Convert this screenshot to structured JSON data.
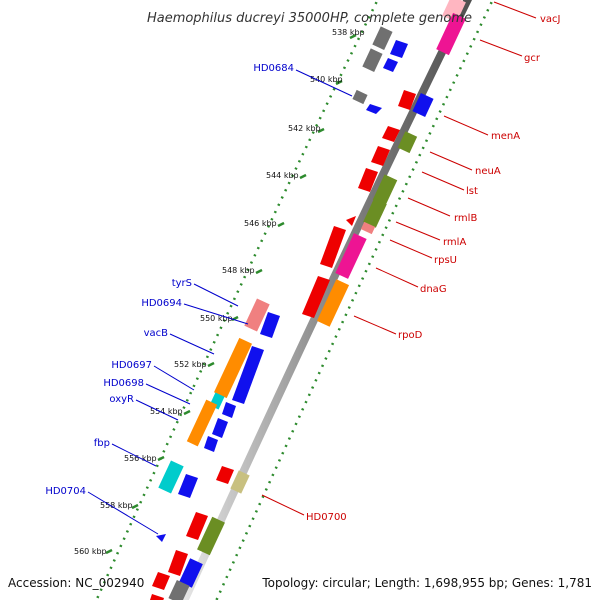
{
  "title": "Haemophilus ducreyi 35000HP, complete genome",
  "footer": {
    "accession": "Accession: NC_002940",
    "stats": "Topology: circular; Length: 1,698,955 bp; Genes: 1,781"
  },
  "colors": {
    "backbone": "#808080",
    "ruler": "#2e8b2e",
    "forward_label": "#cc0000",
    "reverse_label": "#0000cc",
    "red": "#ee0000",
    "blue": "#1010ee",
    "orange": "#ff8c00",
    "olive": "#6b8e23",
    "magenta": "#ee1493",
    "pink": "#f08080",
    "cyan": "#00cccc",
    "tan": "#c8c080",
    "gray": "#707070"
  },
  "ruler_ticks": [
    "538 kbp",
    "540 kbp",
    "542 kbp",
    "544 kbp",
    "546 kbp",
    "548 kbp",
    "550 kbp",
    "552 kbp",
    "554 kbp",
    "556 kbp",
    "558 kbp",
    "560 kbp"
  ],
  "forward_labels": [
    "vacJ",
    "gcr",
    "menA",
    "neuA",
    "lst",
    "rmlB",
    "rmlA",
    "rpsU",
    "dnaG",
    "rpoD",
    "HD0700"
  ],
  "reverse_labels": [
    "HD0684",
    "tyrS",
    "HD0694",
    "vacB",
    "HD0697",
    "HD0698",
    "oxyR",
    "fbp",
    "HD0704"
  ]
}
